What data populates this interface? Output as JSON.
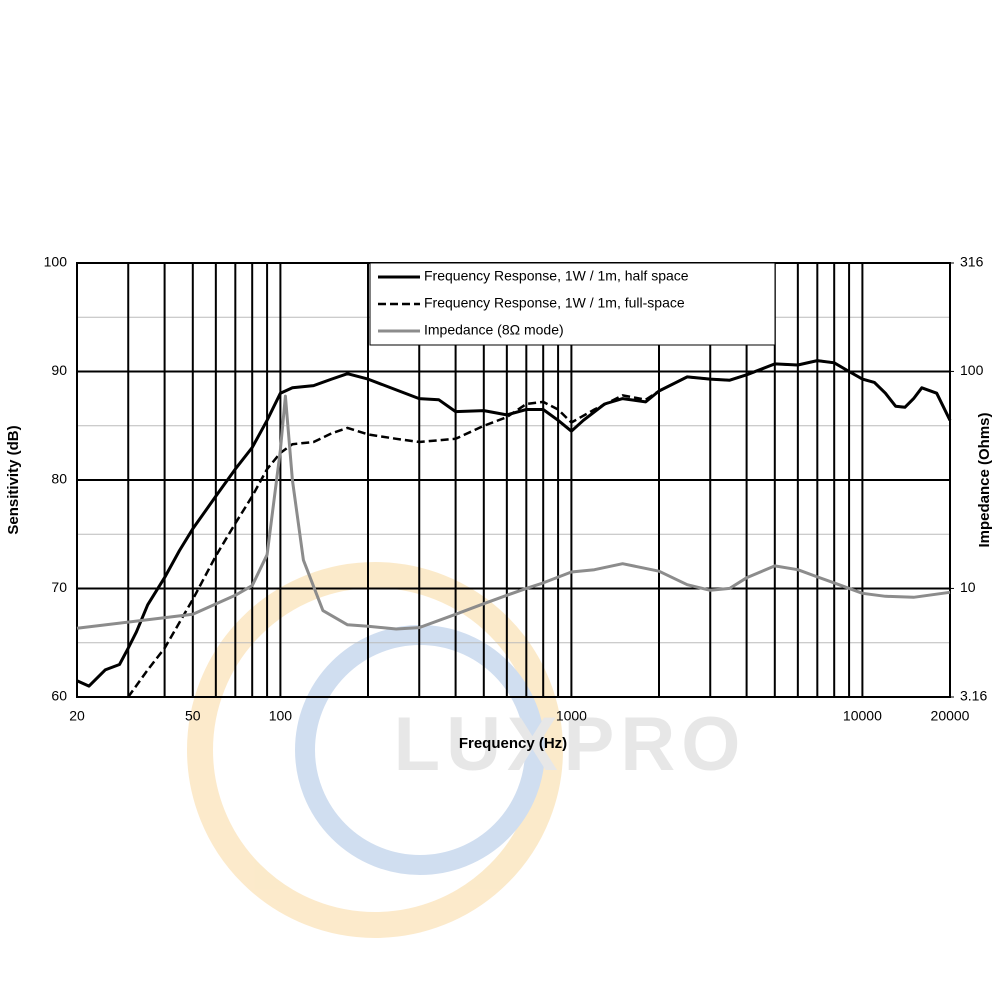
{
  "chart_data": {
    "type": "line",
    "watermark": "LUXPRO",
    "x_label": "Frequency (Hz)",
    "y_label": "Sensitivity (dB)",
    "y2_label": "Impedance (Ohms)",
    "xscale": "log",
    "y2scale": "log",
    "xlim": [
      20,
      20000
    ],
    "xticks": [
      20,
      50,
      100,
      1000,
      10000,
      20000
    ],
    "x_minor_grid": [
      30,
      40,
      60,
      70,
      80,
      90,
      200,
      300,
      400,
      500,
      600,
      700,
      800,
      900,
      2000,
      3000,
      4000,
      5000,
      6000,
      7000,
      8000,
      9000
    ],
    "ylim": [
      60,
      100
    ],
    "yticks": [
      60,
      70,
      80,
      90,
      100
    ],
    "y_minor_grid": [
      65,
      75,
      85,
      95
    ],
    "y2lim": [
      3.16,
      316
    ],
    "y2ticks": [
      3.16,
      10,
      100,
      316
    ],
    "grid": true,
    "legend": "top",
    "series": [
      {
        "name": "Frequency Response, 1W / 1m, half space",
        "color": "#000000",
        "dash": "solid",
        "width": 3,
        "x": [
          20,
          22,
          25,
          28,
          30,
          32,
          35,
          40,
          45,
          50,
          60,
          70,
          80,
          90,
          100,
          110,
          130,
          150,
          170,
          200,
          250,
          300,
          350,
          400,
          500,
          600,
          700,
          800,
          900,
          1000,
          1100,
          1300,
          1500,
          1800,
          2000,
          2500,
          3000,
          3500,
          4000,
          5000,
          6000,
          7000,
          8000,
          9000,
          10000,
          11000,
          12000,
          13000,
          14000,
          15000,
          16000,
          18000,
          20000
        ],
        "values": [
          61.5,
          61,
          62.5,
          63,
          64.5,
          66,
          68.5,
          71,
          73.5,
          75.5,
          78.5,
          81,
          83,
          85.5,
          88,
          88.5,
          88.7,
          89.3,
          89.8,
          89.3,
          88.3,
          87.5,
          87.4,
          86.3,
          86.4,
          86,
          86.5,
          86.5,
          85.5,
          84.5,
          85.5,
          87,
          87.5,
          87.2,
          88.2,
          89.5,
          89.3,
          89.2,
          89.7,
          90.7,
          90.6,
          91,
          90.8,
          90,
          89.3,
          89,
          88,
          86.8,
          86.7,
          87.5,
          88.5,
          88,
          85.5
        ]
      },
      {
        "name": "Frequency Response, 1W / 1m, full-space",
        "color": "#000000",
        "dash": "dashed",
        "width": 2.5,
        "x": [
          30,
          35,
          40,
          50,
          60,
          70,
          80,
          90,
          100,
          110,
          130,
          150,
          170,
          200,
          250,
          300,
          400,
          500,
          600,
          700,
          800,
          900,
          1000,
          1200,
          1500,
          1800,
          2000,
          2500,
          3000,
          3500,
          4000,
          5000,
          6000,
          7000,
          8000,
          9000,
          10000,
          11000,
          12000,
          13000,
          14000,
          15000,
          16000,
          18000,
          20000
        ],
        "values": [
          60,
          62.5,
          64.5,
          69,
          73,
          76,
          78.5,
          81,
          82.5,
          83.3,
          83.5,
          84.3,
          84.8,
          84.2,
          83.8,
          83.5,
          83.8,
          85,
          85.8,
          87,
          87.2,
          86.5,
          85.3,
          86.5,
          87.8,
          87.4,
          88.2,
          89.5,
          89.3,
          89.2,
          89.7,
          90.7,
          90.6,
          91,
          90.8,
          90,
          89.3,
          89,
          88,
          86.8,
          86.7,
          87.5,
          88.5,
          88,
          85.5
        ]
      },
      {
        "name": "Impedance (8Ω mode)",
        "color": "#8c8c8c",
        "dash": "solid",
        "width": 3,
        "axis": "y2",
        "x": [
          20,
          50,
          70,
          80,
          90,
          100,
          104,
          110,
          120,
          140,
          170,
          200,
          250,
          300,
          400,
          500,
          600,
          700,
          800,
          1000,
          1200,
          1500,
          2000,
          2500,
          3000,
          3500,
          4000,
          5000,
          6000,
          7000,
          8000,
          10000,
          12000,
          15000,
          20000
        ],
        "values": [
          6.55,
          7.6,
          9.3,
          10.3,
          14.3,
          43.5,
          77,
          31.6,
          13.5,
          7.9,
          6.8,
          6.7,
          6.5,
          6.6,
          7.6,
          8.5,
          9.3,
          10,
          10.6,
          11.9,
          12.2,
          13,
          12,
          10.4,
          9.8,
          10,
          11.2,
          12.7,
          12.2,
          11.3,
          10.6,
          9.5,
          9.2,
          9.1,
          9.6
        ]
      }
    ]
  }
}
